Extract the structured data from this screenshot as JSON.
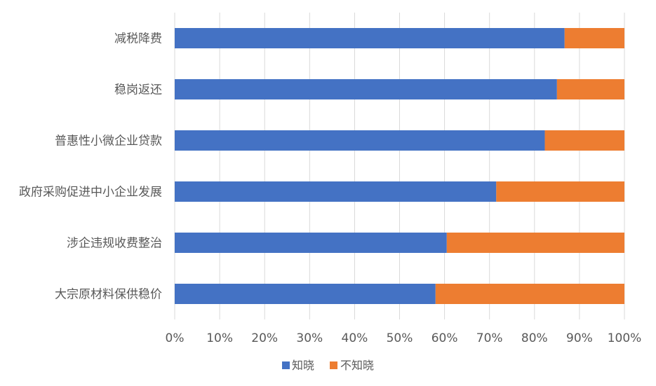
{
  "chart_data": {
    "type": "bar",
    "orientation": "horizontal",
    "stacked": "percent",
    "categories": [
      "减税降费",
      "稳岗返还",
      "普惠性小微企业贷款",
      "政府采购促进中小企业发展",
      "涉企违规收费整治",
      "大宗原材料保供稳价"
    ],
    "series": [
      {
        "name": "知晓",
        "color": "#4472C4",
        "values": [
          86.7,
          85.0,
          82.3,
          71.5,
          60.5,
          58.0
        ]
      },
      {
        "name": "不知晓",
        "color": "#ED7D31",
        "values": [
          13.3,
          15.0,
          17.7,
          28.5,
          39.5,
          42.0
        ]
      }
    ],
    "x_ticks": [
      "0%",
      "10%",
      "20%",
      "30%",
      "40%",
      "50%",
      "60%",
      "70%",
      "80%",
      "90%",
      "100%"
    ],
    "xlim": [
      0,
      100
    ],
    "grid": true,
    "legend_position": "bottom",
    "title": "",
    "xlabel": "",
    "ylabel": ""
  }
}
